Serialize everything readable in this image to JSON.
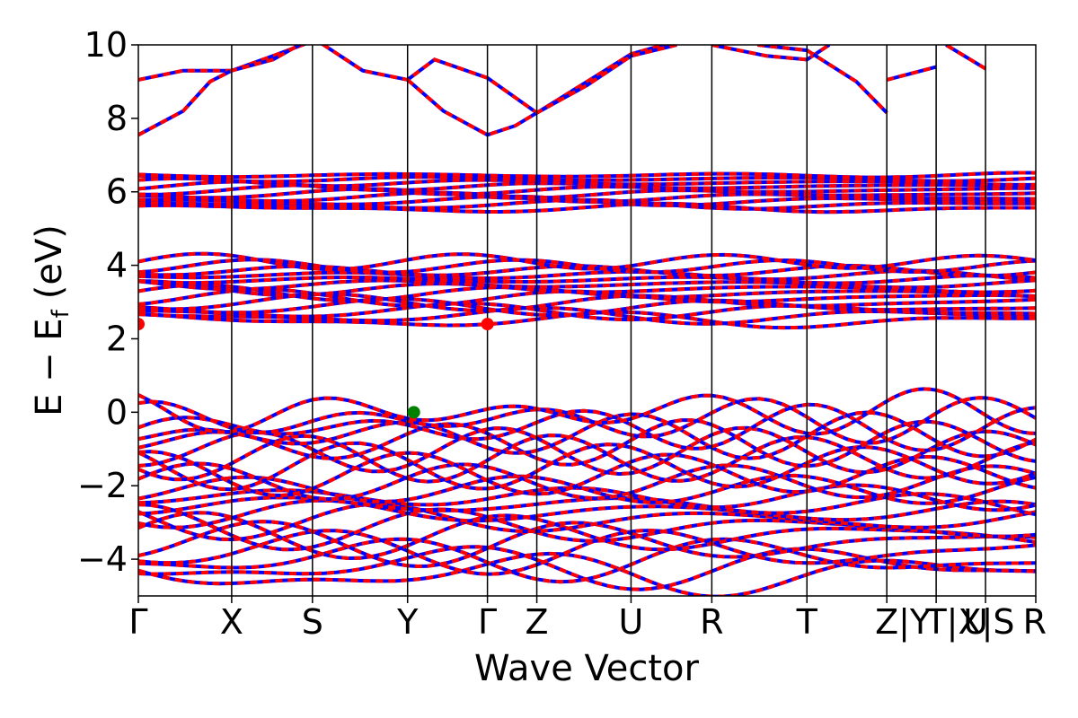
{
  "chart_data": {
    "type": "line",
    "title": "",
    "xlabel": "Wave Vector",
    "ylabel_main": "E − E",
    "ylabel_sub": "f",
    "ylabel_unit": "(eV)",
    "ylim": [
      -5,
      10
    ],
    "yticks": [
      -4,
      -2,
      0,
      2,
      4,
      6,
      8,
      10
    ],
    "ytick_labels": [
      "−4",
      "−2",
      "0",
      "2",
      "4",
      "6",
      "8",
      "10"
    ],
    "xlim": [
      0,
      10.0
    ],
    "kpoints": [
      {
        "x": 0.0,
        "label": "Γ"
      },
      {
        "x": 1.04,
        "label": "X"
      },
      {
        "x": 1.94,
        "label": "S"
      },
      {
        "x": 3.0,
        "label": "Y"
      },
      {
        "x": 3.89,
        "label": "Γ"
      },
      {
        "x": 4.44,
        "label": "Z"
      },
      {
        "x": 5.49,
        "label": "U"
      },
      {
        "x": 6.39,
        "label": "R"
      },
      {
        "x": 7.45,
        "label": "T"
      },
      {
        "x": 8.34,
        "label": "Z"
      },
      {
        "x": 8.89,
        "label": ""
      },
      {
        "x": 9.44,
        "label": ""
      },
      {
        "x": 10.0,
        "label": ""
      }
    ],
    "kpath_extra_labels": [
      {
        "x": 8.65,
        "label": "|Y"
      },
      {
        "x": 8.89,
        "label": "T"
      },
      {
        "x": 9.2,
        "label": "|X"
      },
      {
        "x": 9.33,
        "label": "U"
      },
      {
        "x": 9.58,
        "label": "|S"
      },
      {
        "x": 10.0,
        "label": "R"
      }
    ],
    "series": [
      {
        "color": "#0000ff",
        "style": "solid"
      },
      {
        "color": "#ff0000",
        "style": "dashed"
      }
    ],
    "markers": [
      {
        "x": 3.07,
        "y": 0.0,
        "color": "#008000"
      },
      {
        "x": 0.0,
        "y": 2.4,
        "color": "#ff0000"
      },
      {
        "x": 3.89,
        "y": 2.4,
        "color": "#ff0000"
      }
    ],
    "bands": {
      "conduction_high": [
        {
          "pts": [
            [
              0.0,
              9.05
            ],
            [
              0.5,
              9.3
            ],
            [
              1.04,
              9.3
            ],
            [
              1.5,
              9.7
            ],
            [
              1.94,
              10.1
            ]
          ]
        },
        {
          "pts": [
            [
              0.0,
              7.55
            ],
            [
              0.5,
              8.2
            ],
            [
              0.8,
              9.0
            ],
            [
              1.04,
              9.3
            ],
            [
              1.5,
              9.6
            ],
            [
              1.94,
              10.2
            ]
          ]
        },
        {
          "pts": [
            [
              1.94,
              10.2
            ],
            [
              2.5,
              9.3
            ],
            [
              3.0,
              9.05
            ],
            [
              3.3,
              9.6
            ],
            [
              3.89,
              9.1
            ],
            [
              4.44,
              8.15
            ],
            [
              5.0,
              9.0
            ],
            [
              5.49,
              9.75
            ],
            [
              6.0,
              10.1
            ]
          ]
        },
        {
          "pts": [
            [
              3.0,
              9.05
            ],
            [
              3.4,
              8.2
            ],
            [
              3.89,
              7.55
            ],
            [
              4.2,
              7.8
            ],
            [
              4.44,
              8.15
            ],
            [
              5.0,
              8.9
            ],
            [
              5.49,
              9.7
            ],
            [
              6.0,
              10.0
            ]
          ]
        },
        {
          "pts": [
            [
              6.39,
              10.0
            ],
            [
              7.0,
              9.7
            ],
            [
              7.45,
              9.6
            ],
            [
              7.7,
              10.0
            ]
          ]
        },
        {
          "pts": [
            [
              6.9,
              10.0
            ],
            [
              7.45,
              9.85
            ],
            [
              8.0,
              9.0
            ],
            [
              8.34,
              8.15
            ]
          ]
        },
        {
          "pts": [
            [
              8.34,
              9.05
            ],
            [
              8.89,
              9.4
            ]
          ]
        },
        {
          "pts": [
            [
              9.44,
              9.35
            ],
            [
              9.0,
              10.0
            ]
          ]
        }
      ],
      "conduction_group_6": {
        "center": 6.0,
        "spread": 0.45,
        "count": 10
      },
      "conduction_group_35": {
        "center": 3.3,
        "spread": 0.8,
        "count": 14
      },
      "valence_group": {
        "center": -2.2,
        "spread": 2.2,
        "count": 22
      }
    }
  }
}
